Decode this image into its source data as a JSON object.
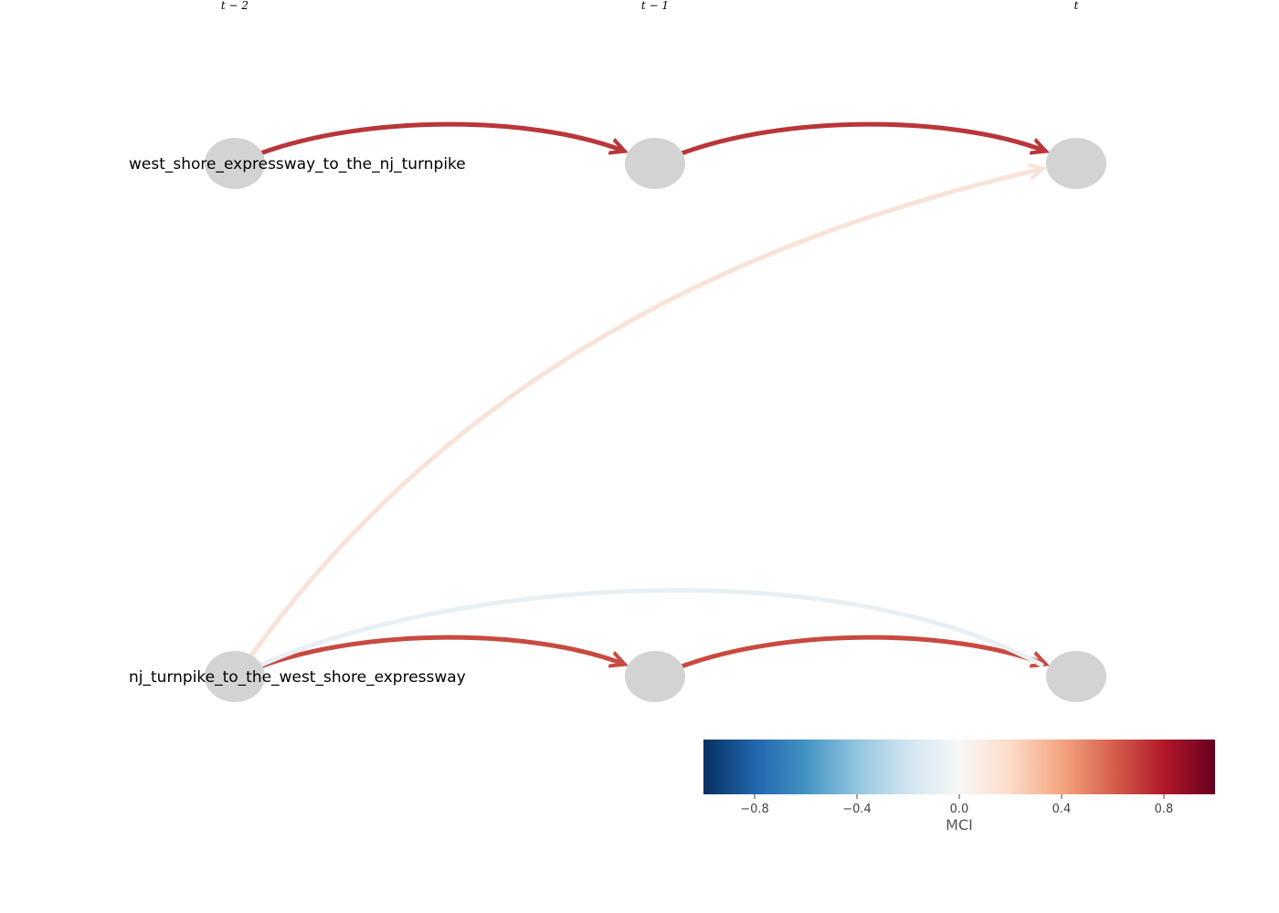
{
  "time_labels": [
    "t − 2",
    "t − 1",
    "t"
  ],
  "variables": [
    {
      "label": "west_shore_expressway_to_the_nj_turnpike"
    },
    {
      "label": "nj_turnpike_to_the_west_shore_expressway"
    }
  ],
  "links": [
    {
      "from": {
        "var": 0,
        "lag": 2
      },
      "to": {
        "var": 0,
        "lag": 1
      },
      "mci": 0.78,
      "color": "#b9363a"
    },
    {
      "from": {
        "var": 0,
        "lag": 1
      },
      "to": {
        "var": 0,
        "lag": 0
      },
      "mci": 0.78,
      "color": "#b9363a"
    },
    {
      "from": {
        "var": 1,
        "lag": 2
      },
      "to": {
        "var": 1,
        "lag": 1
      },
      "mci": 0.72,
      "color": "#c84a40"
    },
    {
      "from": {
        "var": 1,
        "lag": 1
      },
      "to": {
        "var": 1,
        "lag": 0
      },
      "mci": 0.72,
      "color": "#c84a40"
    },
    {
      "from": {
        "var": 1,
        "lag": 2
      },
      "to": {
        "var": 0,
        "lag": 0
      },
      "mci": 0.12,
      "color": "#f9e3d8"
    },
    {
      "from": {
        "var": 1,
        "lag": 2
      },
      "to": {
        "var": 1,
        "lag": 0
      },
      "mci": -0.06,
      "color": "#e8f0f5"
    }
  ],
  "node_color": "#d3d3d3",
  "colorbar": {
    "title": "MCI",
    "vmin": -1.0,
    "vmax": 1.0,
    "ticks": [
      -0.8,
      -0.4,
      0.0,
      0.4,
      0.8
    ],
    "tick_labels": [
      "−0.8",
      "−0.4",
      "0.0",
      "0.4",
      "0.8"
    ],
    "colormap_stops": [
      "#053061",
      "#2166ac",
      "#4393c3",
      "#92c5de",
      "#d1e5f0",
      "#f7f7f7",
      "#fddbc7",
      "#f4a582",
      "#d6604d",
      "#b2182b",
      "#67001f"
    ]
  }
}
